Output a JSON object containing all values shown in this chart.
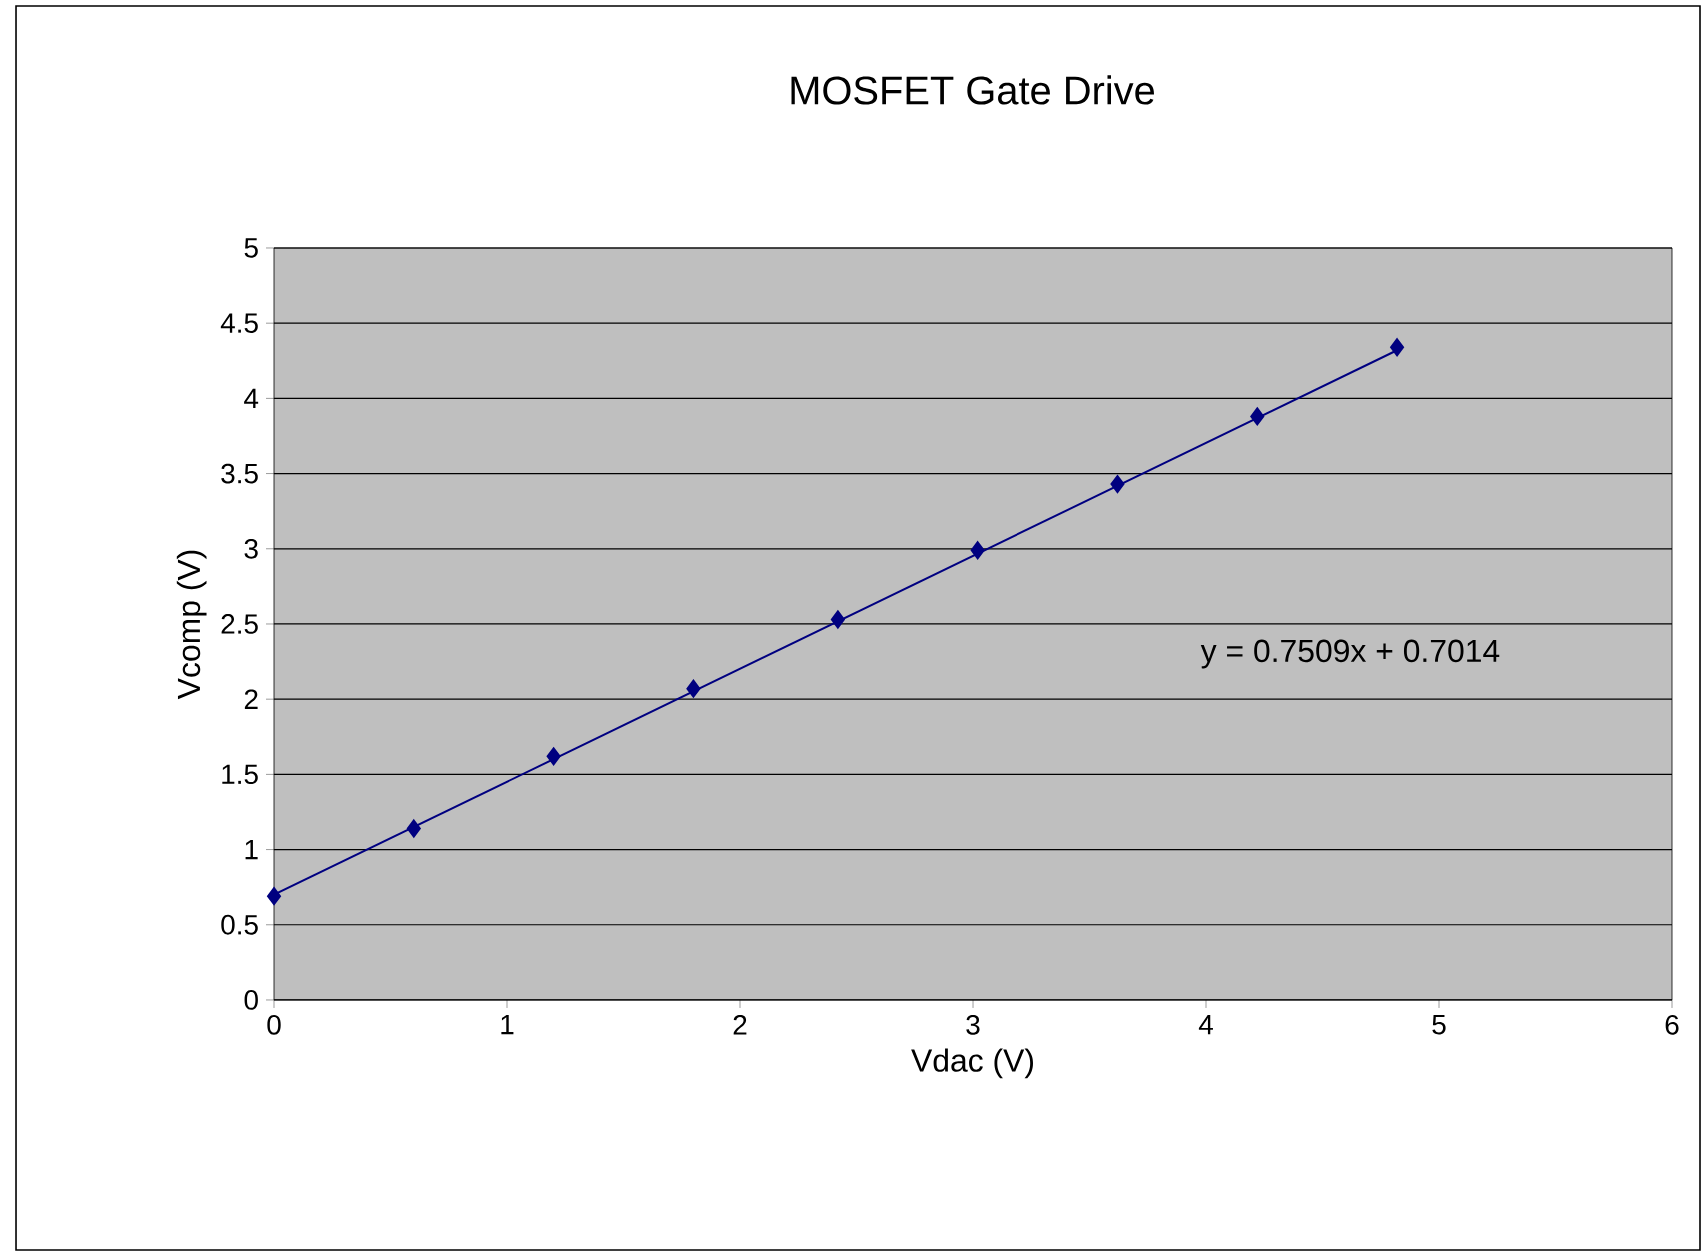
{
  "chart_data": {
    "type": "scatter",
    "title": "MOSFET Gate Drive",
    "xlabel": "Vdac (V)",
    "ylabel": "Vcomp (V)",
    "series": [
      {
        "color": "#000080",
        "marker": "diamond",
        "x": [
          0,
          0.6,
          1.2,
          1.8,
          2.42,
          3.02,
          3.62,
          4.22,
          4.82
        ],
        "values": [
          0.69,
          1.14,
          1.62,
          2.07,
          2.53,
          2.99,
          3.43,
          3.88,
          4.34
        ]
      },
      {
        "type": "line",
        "color": "#000080",
        "marker": "none",
        "x": [
          0,
          4.82
        ],
        "values": [
          0.7,
          4.32
        ]
      }
    ],
    "annotations": [
      "y = 0.7509x + 0.7014"
    ],
    "xlim": [
      0,
      6
    ],
    "xticks": [
      0,
      1,
      2,
      3,
      4,
      5,
      6
    ],
    "ylim": [
      0,
      5
    ],
    "yticks": [
      0,
      0.5,
      1,
      1.5,
      2,
      2.5,
      3,
      3.5,
      4,
      4.5,
      5
    ],
    "grid": "y"
  }
}
